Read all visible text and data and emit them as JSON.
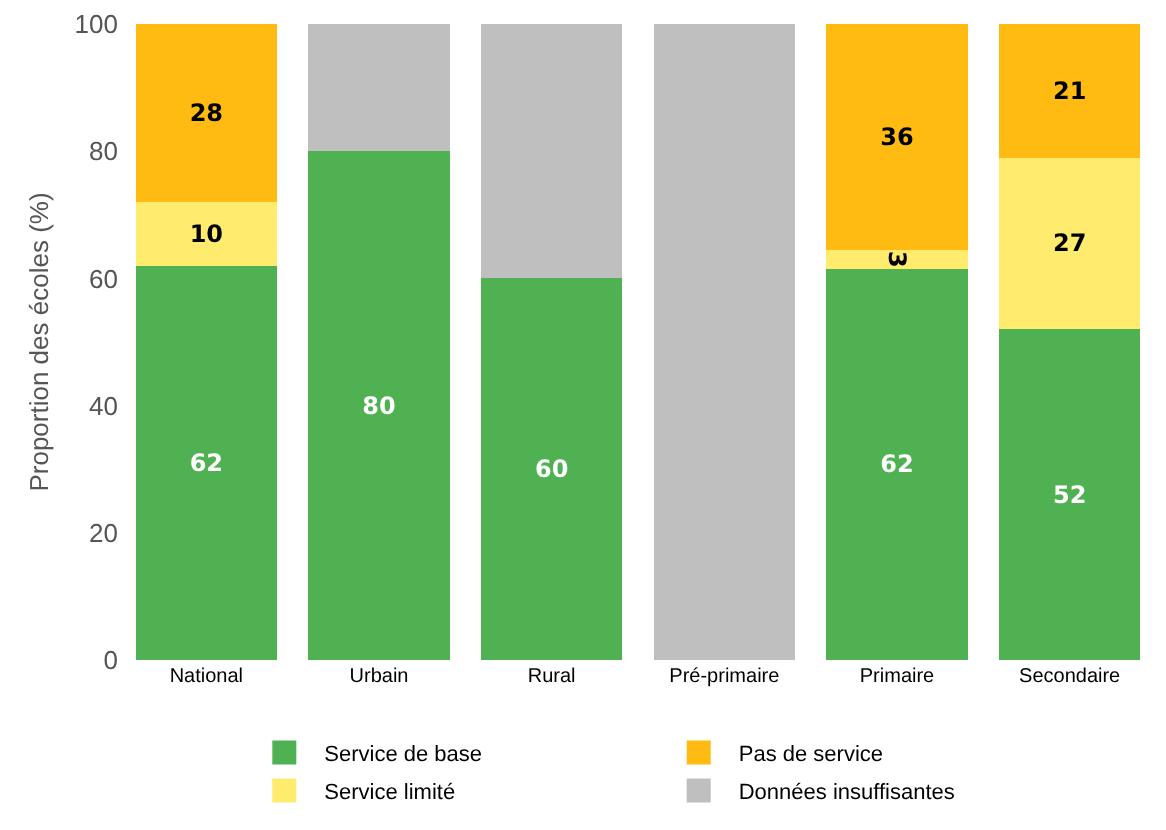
{
  "chart_data": {
    "type": "bar",
    "stacked": true,
    "ylabel": "Proportion des écoles (%)",
    "categories": [
      "National",
      "Urbain",
      "Rural",
      "Pré-primaire",
      "Primaire",
      "Secondaire"
    ],
    "series": [
      {
        "name": "Service de base",
        "color": "#50b152",
        "values": [
          62,
          80,
          60,
          null,
          61.5,
          52
        ],
        "value_labels": [
          "62",
          "80",
          "60",
          null,
          "62",
          "52"
        ]
      },
      {
        "name": "Service limité",
        "color": "#ffeb6e",
        "values": [
          10,
          null,
          null,
          null,
          3,
          27
        ],
        "value_labels": [
          "10",
          null,
          null,
          null,
          "3",
          "27"
        ]
      },
      {
        "name": "Pas de service",
        "color": "#ffbb12",
        "values": [
          28,
          null,
          null,
          null,
          35.5,
          21
        ],
        "value_labels": [
          "28",
          null,
          null,
          null,
          "36",
          "21"
        ]
      },
      {
        "name": "Données insuffisantes",
        "color": "#bfbfbf",
        "values": [
          null,
          20,
          40,
          100,
          null,
          null
        ],
        "value_labels": [
          null,
          null,
          null,
          null,
          null,
          null
        ]
      }
    ],
    "ylim": [
      0,
      100
    ],
    "yticks": [
      0,
      20,
      40,
      60,
      80,
      100
    ],
    "grid": false,
    "legend": "bottom"
  }
}
